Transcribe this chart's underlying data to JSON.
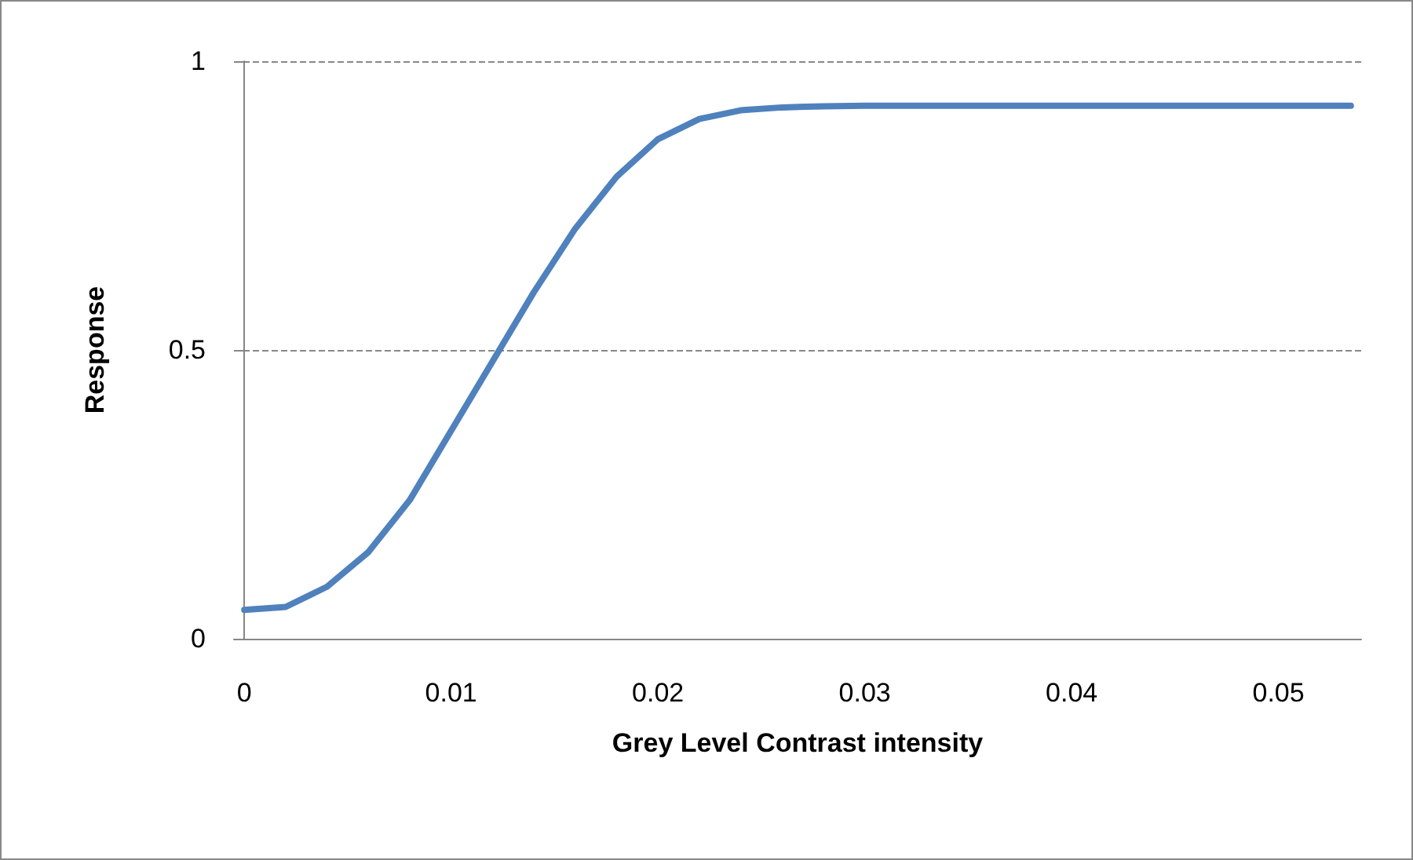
{
  "chart_data": {
    "type": "line",
    "xlabel": "Grey Level Contrast intensity",
    "ylabel": "Response",
    "x": [
      0,
      0.002,
      0.004,
      0.006,
      0.008,
      0.01,
      0.012,
      0.014,
      0.016,
      0.018,
      0.02,
      0.022,
      0.024,
      0.026,
      0.028,
      0.03,
      0.035,
      0.04,
      0.045,
      0.05,
      0.0535
    ],
    "series": [
      {
        "color": "#4f81bd",
        "values": [
          0.05,
          0.055,
          0.09,
          0.15,
          0.24,
          0.36,
          0.48,
          0.6,
          0.71,
          0.8,
          0.865,
          0.9,
          0.915,
          0.92,
          0.922,
          0.923,
          0.923,
          0.923,
          0.923,
          0.923,
          0.923
        ]
      }
    ],
    "xlim": [
      -0.0005,
      0.054
    ],
    "xticks": [
      0,
      0.01,
      0.02,
      0.03,
      0.04,
      0.05
    ],
    "ylim": [
      0,
      1
    ],
    "yticks": [
      0,
      0.5,
      1
    ],
    "grid": "y",
    "marker": "none",
    "line_style": "solid"
  }
}
